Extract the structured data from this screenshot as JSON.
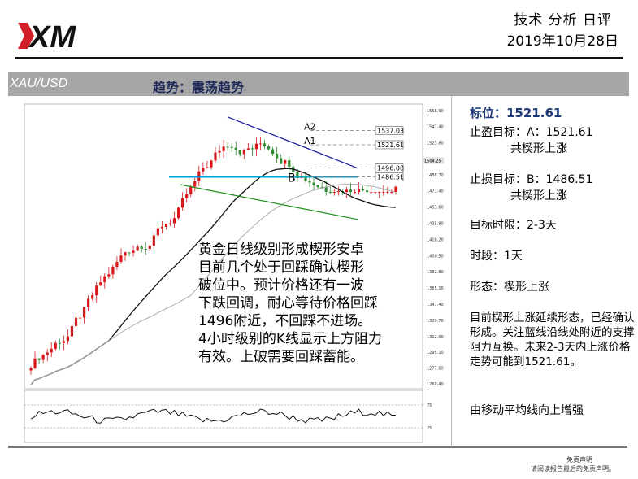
{
  "header": {
    "title": "技术 分析 日评",
    "date": "2019年10月28日",
    "logo_text": "XM",
    "brand_color": "#d01f26"
  },
  "bar": {
    "symbol": "XAU/USD",
    "trend": "趋势：震荡趋势"
  },
  "chart_data": {
    "type": "candlestick",
    "price_axis_ticks": [
      "1558.90",
      "1541.40",
      "1523.80",
      "1506.20",
      "1488.70",
      "1471.40",
      "1453.60",
      "1435.90",
      "1418.20",
      "1400.50",
      "1382.80",
      "1365.10",
      "1347.40",
      "1329.70",
      "1312.00",
      "1295.10",
      "1277.60",
      "1260.40"
    ],
    "levels": [
      {
        "label": "1537.03",
        "marker": "A2",
        "value": 1537.03
      },
      {
        "label": "1521.61",
        "marker": "A1",
        "value": 1521.61
      },
      {
        "label": "1496.08",
        "value": 1496.08
      },
      {
        "label": "1486.51",
        "marker": "B",
        "value": 1486.51
      },
      {
        "label": "1504.25",
        "value": 1504.25
      }
    ],
    "oscillator_ticks": [
      "75",
      "25"
    ],
    "colors": {
      "up": "#d7191c",
      "down": "#2e8b2e",
      "support": "#00a0d8",
      "upper_trend": "#1a1aa0",
      "lower_trend": "#1a8f1a"
    }
  },
  "overlay_text": [
    "黄金日线级别形成楔形安卓",
    "目前几个处于回踩确认楔形",
    "破位中。预计价格还有一波",
    "下跌回调，耐心等待价格回踩",
    "1496附近，不回踩不进场。",
    "4小时级别的K线显示上方阻力",
    "有效。上破需要回踩蓄能。"
  ],
  "side": {
    "target": "标位：1521.61",
    "tp_label": "止盈目标：A：1521.61",
    "tp_sub": "共楔形上涨",
    "sl_label": "止损目标：B：1486.51",
    "sl_sub": "共楔形上涨",
    "timeframe": "目标时限：2-3天",
    "period": "时段：1天",
    "pattern": "形态：楔形上涨",
    "analysis": "目前楔形上涨延续形态，已经确认形成。关注蓝线沿线处附近的支撑阻力互换。未来2-3天内上涨价格走势可能到1521.61。",
    "note": "由移动平均线向上增强"
  },
  "disclaimer": {
    "line1": "免责声明",
    "line2": "请阅读报告最后的免责声明。"
  }
}
